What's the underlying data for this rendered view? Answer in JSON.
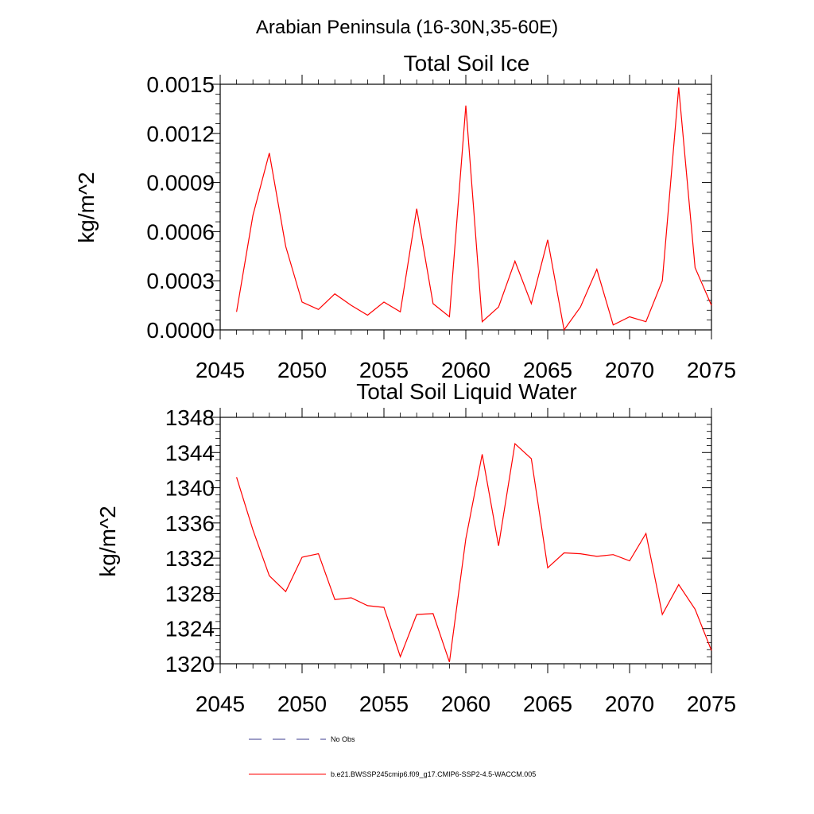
{
  "figure_title": "Arabian Peninsula (16-30N,35-60E)",
  "chart_data": [
    {
      "type": "line",
      "title": "Total Soil Ice",
      "xlabel": "",
      "ylabel": "kg/m^2",
      "xlim": [
        2045,
        2075
      ],
      "ylim": [
        0,
        0.0015
      ],
      "x_ticks": [
        2045,
        2050,
        2055,
        2060,
        2065,
        2070,
        2075
      ],
      "y_ticks": [
        0,
        0.0003,
        0.0006,
        0.0009,
        0.0012,
        0.0015
      ],
      "y_tick_labels": [
        "0.0000",
        "0.0003",
        "0.0006",
        "0.0009",
        "0.0012",
        "0.0015"
      ],
      "grid": false,
      "series": [
        {
          "name": "b.e21.BWSSP245cmip6.f09_g17.CMIP6-SSP2-4.5-WACCM.005",
          "color": "#ff0000",
          "x": [
            2046,
            2047,
            2048,
            2049,
            2050,
            2051,
            2052,
            2053,
            2054,
            2055,
            2056,
            2057,
            2058,
            2059,
            2060,
            2061,
            2062,
            2063,
            2064,
            2065,
            2066,
            2067,
            2068,
            2069,
            2070,
            2071,
            2072,
            2073,
            2074,
            2075
          ],
          "values": [
            0.00011,
            0.0007,
            0.00108,
            0.00051,
            0.00017,
            0.000125,
            0.00022,
            0.00015,
            9e-05,
            0.00017,
            0.00011,
            0.00074,
            0.00016,
            8e-05,
            0.00137,
            5e-05,
            0.00014,
            0.00042,
            0.00016,
            0.00055,
            0.0,
            0.00014,
            0.00037,
            3e-05,
            8e-05,
            5e-05,
            0.0003,
            0.00148,
            0.00038,
            0.00015
          ]
        }
      ]
    },
    {
      "type": "line",
      "title": "Total Soil Liquid Water",
      "xlabel": "",
      "ylabel": "kg/m^2",
      "xlim": [
        2045,
        2075
      ],
      "ylim": [
        1320,
        1348
      ],
      "x_ticks": [
        2045,
        2050,
        2055,
        2060,
        2065,
        2070,
        2075
      ],
      "y_ticks": [
        1320,
        1324,
        1328,
        1332,
        1336,
        1340,
        1344,
        1348
      ],
      "y_tick_labels": [
        "1320",
        "1324",
        "1328",
        "1332",
        "1336",
        "1340",
        "1344",
        "1348"
      ],
      "grid": false,
      "series": [
        {
          "name": "b.e21.BWSSP245cmip6.f09_g17.CMIP6-SSP2-4.5-WACCM.005",
          "color": "#ff0000",
          "x": [
            2046,
            2047,
            2048,
            2049,
            2050,
            2051,
            2052,
            2053,
            2054,
            2055,
            2056,
            2057,
            2058,
            2059,
            2060,
            2061,
            2062,
            2063,
            2064,
            2065,
            2066,
            2067,
            2068,
            2069,
            2070,
            2071,
            2072,
            2073,
            2074,
            2075
          ],
          "values": [
            1341.2,
            1335.2,
            1330.0,
            1328.2,
            1332.1,
            1332.5,
            1327.3,
            1327.5,
            1326.6,
            1326.4,
            1320.8,
            1325.6,
            1325.7,
            1320.2,
            1334.2,
            1343.8,
            1333.4,
            1345.0,
            1343.3,
            1330.9,
            1332.6,
            1332.5,
            1332.2,
            1332.4,
            1331.7,
            1334.8,
            1325.6,
            1329.0,
            1326.2,
            1321.5
          ]
        }
      ]
    }
  ],
  "legend": {
    "items": [
      {
        "label": "No Obs",
        "color": "#3b3b8f",
        "style": "dashed"
      },
      {
        "label": "b.e21.BWSSP245cmip6.f09_g17.CMIP6-SSP2-4.5-WACCM.005",
        "color": "#ff0000",
        "style": "solid"
      }
    ]
  }
}
